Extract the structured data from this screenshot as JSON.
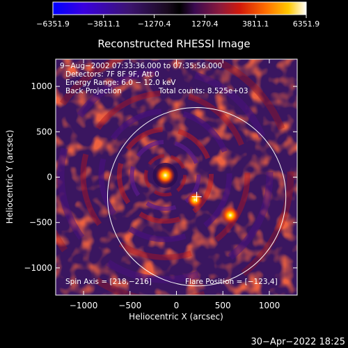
{
  "colorbar": {
    "tick_labels": [
      "−6351.9",
      "−3811.1",
      "−1270.4",
      "1270.4",
      "3811.1",
      "6351.9"
    ],
    "range": [
      -6351.9,
      6351.9
    ],
    "colors": [
      "#0000ff",
      "#5a00d8",
      "#3c1a78",
      "#000000",
      "#5a1a8c",
      "#c81a1a",
      "#ff5a00",
      "#ffb400",
      "#ffffff"
    ]
  },
  "chart_data": {
    "type": "heatmap",
    "title": "Reconstructed RHESSI Image",
    "xlabel": "Heliocentric X (arcsec)",
    "ylabel": "Heliocentric Y (arcsec)",
    "xlim": [
      -1300,
      1300
    ],
    "ylim": [
      -1300,
      1300
    ],
    "x_ticks": [
      -1000,
      -500,
      0,
      500,
      1000
    ],
    "y_ticks": [
      -1000,
      -500,
      0,
      500,
      1000
    ],
    "x_tick_labels": [
      "−1000",
      "−500",
      "0",
      "500",
      "1000"
    ],
    "y_tick_labels": [
      "−1000",
      "−500",
      "0",
      "500",
      "1000"
    ],
    "solar_limb": {
      "center": [
        218,
        -216
      ],
      "radius": 960
    },
    "cross_marker": [
      218,
      -216
    ],
    "sources": [
      {
        "x": -120,
        "y": 20,
        "peak": 6351.9
      },
      {
        "x": 200,
        "y": -250,
        "peak": 4200
      },
      {
        "x": 580,
        "y": -420,
        "peak": 5200
      }
    ],
    "annotations": {
      "time": "9−Aug−2002 07:33:36.000 to 07:35:56.000",
      "detectors": "Detectors: 7F 8F 9F, Att 0",
      "energy": "Energy Range: 6.0 − 12.0 keV",
      "method": "Back Projection",
      "counts": "Total counts: 8.525e+03",
      "spin_axis": "Spin Axis = [218,−216]",
      "flare_position": "Flare Position = [−123,4]"
    }
  },
  "footer": {
    "timestamp": "30−Apr−2022 18:25"
  }
}
